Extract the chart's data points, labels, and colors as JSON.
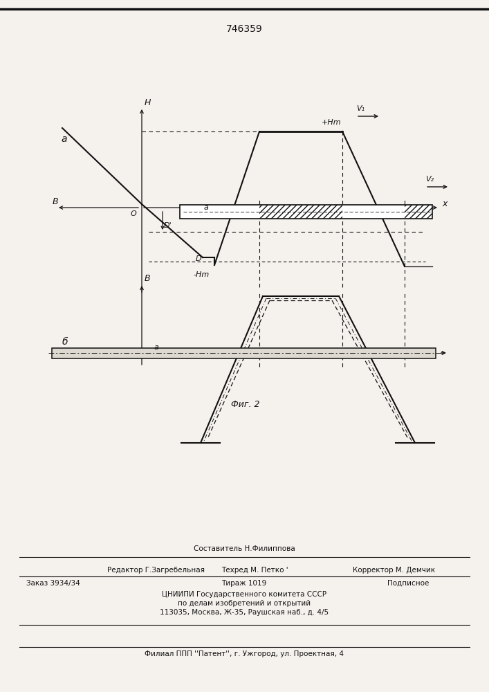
{
  "title": "746359",
  "background_color": "#f5f2ee",
  "text_color": "#111111",
  "bottom_texts": {
    "editor": "Редактор Г.Загребельная",
    "composer": "Составитель Н.Филиппова",
    "techred": "Техред М. Петко '",
    "corrector": "Корректор М. Демчик",
    "order": "Заказ 3934/34",
    "tirazh": "Тираж 1019",
    "podpisnoe": "Подписное",
    "tsniipi1": "ЦНИИПИ Государственного комитета СССР",
    "tsniipi2": "по делам изобретений и открытий",
    "tsniipi3": "113035, Москва, Ж-35, Раушская наб., д. 4/5",
    "filial": "Филиал ППП ''Патент'', г. Ужгород, ул. Проектная, 4"
  }
}
